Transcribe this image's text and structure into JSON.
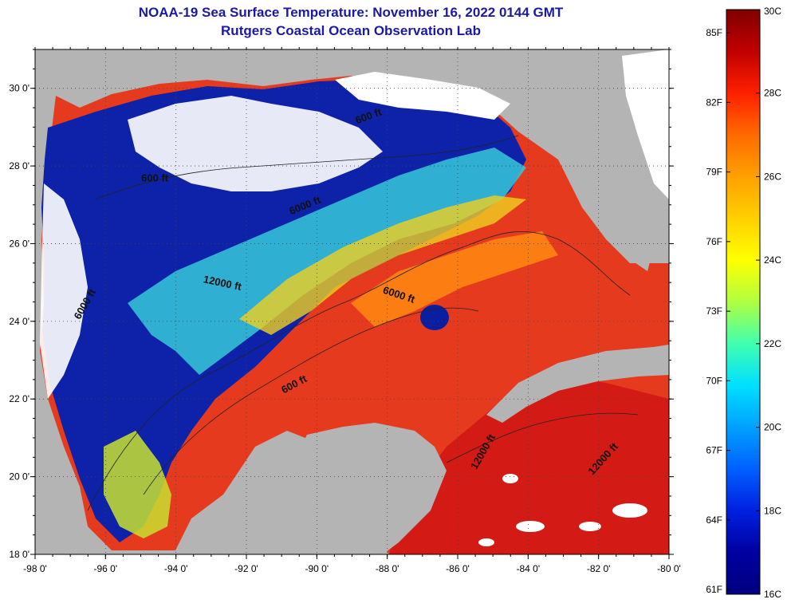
{
  "header": {
    "title": "NOAA-19 Sea Surface Temperature:  November 16, 2022 0144 GMT",
    "subtitle": "Rutgers Coastal Ocean Observation Lab"
  },
  "map": {
    "lon_range": [
      -98,
      -80
    ],
    "lat_range": [
      18,
      31
    ],
    "lon_ticks": [
      "-98 0'",
      "-96 0'",
      "-94 0'",
      "-92 0'",
      "-90 0'",
      "-88 0'",
      "-86 0'",
      "-84 0'",
      "-82 0'",
      "-80 0'"
    ],
    "lat_ticks": [
      "30 0'",
      "28 0'",
      "26 0'",
      "24 0'",
      "22 0'",
      "20 0'",
      "18 0'"
    ],
    "contour_labels": [
      {
        "text": "600 ft",
        "lon": -94.6,
        "lat": 27.6,
        "angle": 0
      },
      {
        "text": "600 ft",
        "lon": -88.5,
        "lat": 29.2,
        "angle": -20
      },
      {
        "text": "6000 ft",
        "lon": -90.3,
        "lat": 26.9,
        "angle": -22
      },
      {
        "text": "12000 ft",
        "lon": -92.7,
        "lat": 24.9,
        "angle": 12
      },
      {
        "text": "6000 ft",
        "lon": -87.7,
        "lat": 24.6,
        "angle": 18
      },
      {
        "text": "600 ft",
        "lon": -90.6,
        "lat": 22.3,
        "angle": -28
      },
      {
        "text": "12000 ft",
        "lon": -85.2,
        "lat": 20.6,
        "angle": -60
      },
      {
        "text": "12000 ft",
        "lon": -81.8,
        "lat": 20.4,
        "angle": -48
      },
      {
        "text": "6000 ft",
        "lon": -96.5,
        "lat": 24.4,
        "angle": -60
      }
    ]
  },
  "colorbar": {
    "celsius_labels": [
      "30C",
      "28C",
      "26C",
      "24C",
      "22C",
      "20C",
      "18C",
      "16C"
    ],
    "fahrenheit_labels": [
      "85F",
      "82F",
      "79F",
      "76F",
      "73F",
      "70F",
      "67F",
      "64F",
      "61F"
    ],
    "colors_top_to_bottom": [
      "#800000",
      "#c00000",
      "#ff2000",
      "#ff6a00",
      "#ffa000",
      "#ffd000",
      "#ffff00",
      "#b0ff40",
      "#40ffb0",
      "#00e0ff",
      "#00a0ff",
      "#0060ff",
      "#0020e0",
      "#0000a0",
      "#000080"
    ]
  },
  "colors": {
    "land": "#b4b4b4",
    "cloud": "#ffffff",
    "cold_water": "#0a1fa0",
    "warm_water": "#e8321e",
    "hot_water": "#c81414"
  }
}
